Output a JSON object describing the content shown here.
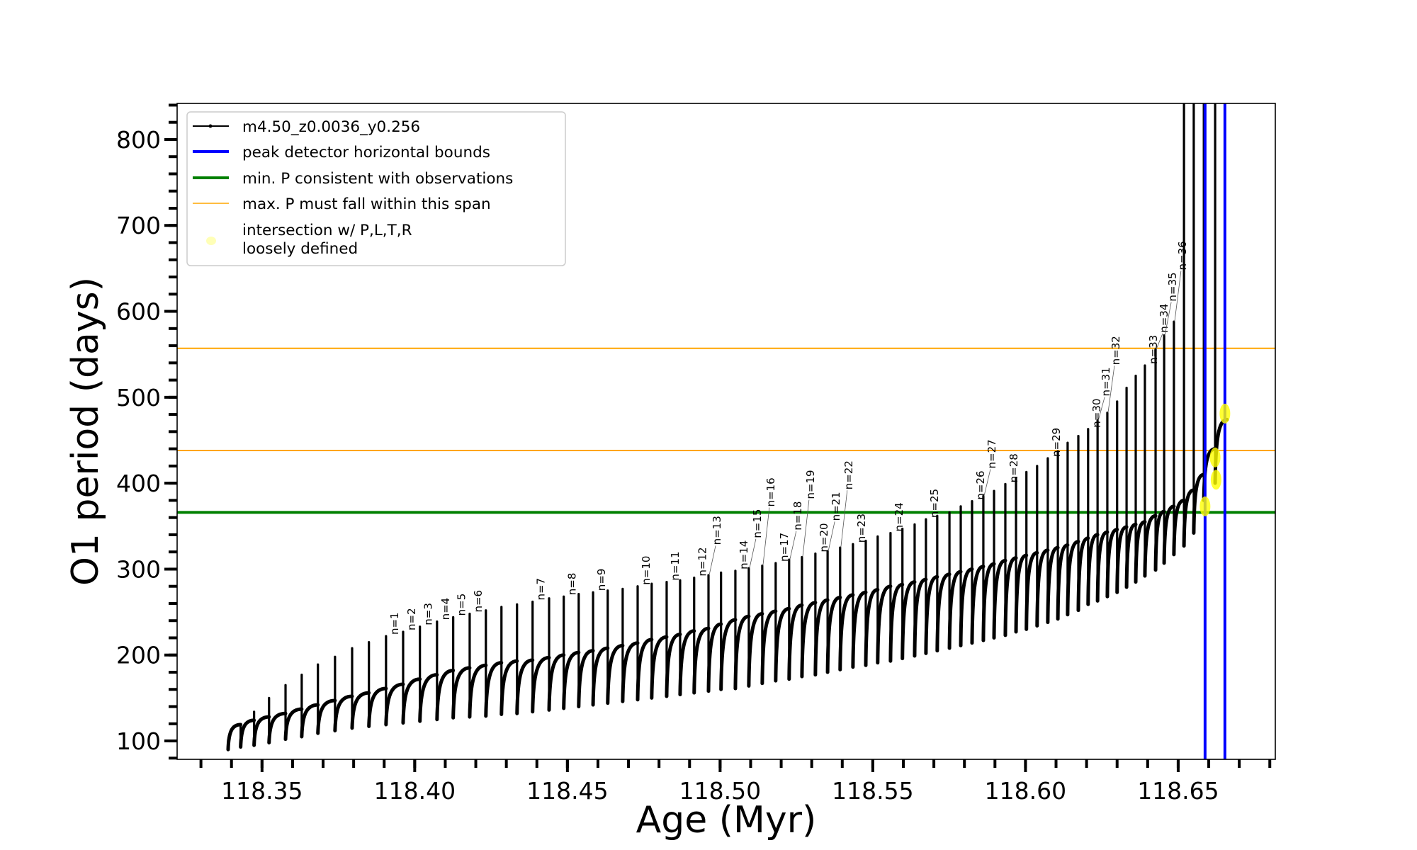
{
  "chart_data": {
    "type": "line",
    "title": "",
    "xlabel": "Age (Myr)",
    "ylabel": "O1 period (days)",
    "xlim": [
      118.3222,
      118.6818
    ],
    "ylim": [
      78.6,
      842
    ],
    "grid": false,
    "legend_position": "top-left",
    "xticks": [
      {
        "value": 118.35,
        "label": "118.35"
      },
      {
        "value": 118.4,
        "label": "118.40"
      },
      {
        "value": 118.45,
        "label": "118.45"
      },
      {
        "value": 118.5,
        "label": "118.50"
      },
      {
        "value": 118.55,
        "label": "118.55"
      },
      {
        "value": 118.6,
        "label": "118.60"
      },
      {
        "value": 118.65,
        "label": "118.65"
      }
    ],
    "xminor_step": 0.01,
    "yticks": [
      {
        "value": 100,
        "label": "100"
      },
      {
        "value": 200,
        "label": "200"
      },
      {
        "value": 300,
        "label": "300"
      },
      {
        "value": 400,
        "label": "400"
      },
      {
        "value": 500,
        "label": "500"
      },
      {
        "value": 600,
        "label": "600"
      },
      {
        "value": 700,
        "label": "700"
      },
      {
        "value": 800,
        "label": "800"
      }
    ],
    "yminor_step": 20,
    "series": [
      {
        "name": "m4.50_z0.0036_y0.256",
        "color": "#000000",
        "cycle_fields": [
          "age",
          "period_before_spike",
          "spike_peak_period",
          "spike_trough_period"
        ],
        "cycles": [
          [
            118.3389,
            101,
            101,
            90
          ],
          [
            118.343,
            119,
            119,
            93
          ],
          [
            118.3474,
            124,
            134,
            95
          ],
          [
            118.3523,
            128,
            150,
            98
          ],
          [
            118.3577,
            132,
            165,
            102
          ],
          [
            118.363,
            137,
            177,
            105
          ],
          [
            118.3683,
            142,
            189,
            109
          ],
          [
            118.3739,
            147,
            198,
            112
          ],
          [
            118.3795,
            152,
            208,
            115
          ],
          [
            118.385,
            156,
            215,
            117
          ],
          [
            118.3906,
            161,
            222,
            119
          ],
          [
            118.3962,
            166,
            227,
            121
          ],
          [
            118.4017,
            172,
            233,
            123
          ],
          [
            118.4073,
            177,
            239,
            125
          ],
          [
            118.4126,
            182,
            244,
            127
          ],
          [
            118.418,
            185,
            248,
            128
          ],
          [
            118.4233,
            188,
            252,
            129
          ],
          [
            118.4284,
            191,
            256,
            131
          ],
          [
            118.4335,
            193,
            259,
            132
          ],
          [
            118.4386,
            194,
            262,
            134
          ],
          [
            118.444,
            197,
            266,
            136
          ],
          [
            118.4488,
            200,
            268,
            138
          ],
          [
            118.4537,
            203,
            271,
            140
          ],
          [
            118.4584,
            205,
            273,
            142
          ],
          [
            118.4632,
            208,
            275,
            144
          ],
          [
            118.4681,
            211,
            277,
            146
          ],
          [
            118.473,
            214,
            280,
            148
          ],
          [
            118.4776,
            218,
            283,
            150
          ],
          [
            118.4825,
            221,
            285,
            152
          ],
          [
            118.4869,
            224,
            287,
            154
          ],
          [
            118.4915,
            228,
            290,
            156
          ],
          [
            118.4962,
            231,
            293,
            158
          ],
          [
            118.5003,
            236,
            296,
            160
          ],
          [
            118.505,
            241,
            298,
            161
          ],
          [
            118.5094,
            245,
            301,
            164
          ],
          [
            118.5138,
            248,
            304,
            167
          ],
          [
            118.5182,
            251,
            307,
            170
          ],
          [
            118.5226,
            254,
            311,
            172
          ],
          [
            118.5268,
            258,
            314,
            175
          ],
          [
            118.5312,
            261,
            318,
            177
          ],
          [
            118.5352,
            264,
            321,
            180
          ],
          [
            118.5393,
            267,
            325,
            183
          ],
          [
            118.5435,
            270,
            329,
            186
          ],
          [
            118.5477,
            273,
            333,
            188
          ],
          [
            118.5516,
            276,
            338,
            191
          ],
          [
            118.5558,
            280,
            342,
            193
          ],
          [
            118.5597,
            282,
            347,
            196
          ],
          [
            118.5637,
            285,
            352,
            199
          ],
          [
            118.5674,
            288,
            358,
            202
          ],
          [
            118.5711,
            291,
            362,
            205
          ],
          [
            118.5751,
            294,
            366,
            208
          ],
          [
            118.5788,
            297,
            373,
            211
          ],
          [
            118.5825,
            300,
            379,
            214
          ],
          [
            118.5862,
            303,
            385,
            217
          ],
          [
            118.5897,
            306,
            391,
            220
          ],
          [
            118.5934,
            310,
            399,
            223
          ],
          [
            118.5969,
            313,
            406,
            227
          ],
          [
            118.6003,
            316,
            413,
            230
          ],
          [
            118.6038,
            319,
            420,
            234
          ],
          [
            118.6073,
            322,
            429,
            238
          ],
          [
            118.6106,
            325,
            437,
            242
          ],
          [
            118.6138,
            328,
            447,
            247
          ],
          [
            118.6173,
            332,
            455,
            252
          ],
          [
            118.6205,
            336,
            463,
            259
          ],
          [
            118.6236,
            340,
            473,
            263
          ],
          [
            118.6268,
            343,
            482,
            268
          ],
          [
            118.63,
            346,
            495,
            273
          ],
          [
            118.6331,
            349,
            511,
            279
          ],
          [
            118.6361,
            352,
            525,
            285
          ],
          [
            118.6391,
            355,
            537,
            292
          ],
          [
            118.6426,
            362,
            556,
            299
          ],
          [
            118.6454,
            367,
            572,
            307
          ],
          [
            118.6486,
            373,
            588,
            317
          ],
          [
            118.6519,
            380,
            null,
            327
          ],
          [
            118.6551,
            392,
            null,
            342
          ],
          [
            118.6584,
            410,
            null,
            380
          ],
          [
            118.6621,
            440,
            null,
            400
          ]
        ],
        "end": [
          118.666,
          474
        ]
      }
    ],
    "hlines": [
      {
        "y": 557,
        "color": "#ffa500",
        "legend": "max. P must fall within this span"
      },
      {
        "y": 438,
        "color": "#ffa500",
        "legend": "max. P must fall within this span"
      },
      {
        "y": 366,
        "color": "#008000",
        "legend": "min. P consistent with observations"
      }
    ],
    "vlines": [
      {
        "x": 118.6588,
        "color": "#0000ff",
        "legend": "peak detector horizontal bounds"
      },
      {
        "x": 118.6653,
        "color": "#0000ff",
        "legend": "peak detector horizontal bounds"
      }
    ],
    "intersections": {
      "color": "#ffff00",
      "points": [
        [
          118.6588,
          373
        ],
        [
          118.6621,
          430
        ],
        [
          118.6624,
          404
        ],
        [
          118.6653,
          481
        ]
      ]
    },
    "annotations": [
      {
        "text": "n=1",
        "x": 118.3906,
        "y": 222
      },
      {
        "text": "n=2",
        "x": 118.3962,
        "y": 227
      },
      {
        "text": "n=3",
        "x": 118.4017,
        "y": 233
      },
      {
        "text": "n=4",
        "x": 118.4073,
        "y": 239
      },
      {
        "text": "n=5",
        "x": 118.4126,
        "y": 244
      },
      {
        "text": "n=6",
        "x": 118.418,
        "y": 248
      },
      {
        "text": "n=7",
        "x": 118.4386,
        "y": 262
      },
      {
        "text": "n=8",
        "x": 118.4488,
        "y": 268
      },
      {
        "text": "n=9",
        "x": 118.4584,
        "y": 273
      },
      {
        "text": "n=10",
        "x": 118.473,
        "y": 280
      },
      {
        "text": "n=11",
        "x": 118.4825,
        "y": 285
      },
      {
        "text": "n=12",
        "x": 118.4915,
        "y": 290
      },
      {
        "text": "n=13",
        "x": 118.4962,
        "y": 293
      },
      {
        "text": "n=14",
        "x": 118.505,
        "y": 298
      },
      {
        "text": "n=15",
        "x": 118.5094,
        "y": 301
      },
      {
        "text": "n=16",
        "x": 118.5138,
        "y": 304
      },
      {
        "text": "n=17",
        "x": 118.5182,
        "y": 307
      },
      {
        "text": "n=18",
        "x": 118.5226,
        "y": 311
      },
      {
        "text": "n=19",
        "x": 118.5268,
        "y": 314
      },
      {
        "text": "n=20",
        "x": 118.5312,
        "y": 318
      },
      {
        "text": "n=21",
        "x": 118.5352,
        "y": 321
      },
      {
        "text": "n=22",
        "x": 118.5393,
        "y": 325
      },
      {
        "text": "n=23",
        "x": 118.5435,
        "y": 329
      },
      {
        "text": "n=24",
        "x": 118.5558,
        "y": 342
      },
      {
        "text": "n=25",
        "x": 118.5674,
        "y": 358
      },
      {
        "text": "n=26",
        "x": 118.5825,
        "y": 379
      },
      {
        "text": "n=27",
        "x": 118.5862,
        "y": 385
      },
      {
        "text": "n=28",
        "x": 118.5934,
        "y": 399
      },
      {
        "text": "n=29",
        "x": 118.6073,
        "y": 429
      },
      {
        "text": "n=30",
        "x": 118.6205,
        "y": 463
      },
      {
        "text": "n=31",
        "x": 118.6236,
        "y": 473
      },
      {
        "text": "n=32",
        "x": 118.6268,
        "y": 482
      },
      {
        "text": "n=33",
        "x": 118.6391,
        "y": 537
      },
      {
        "text": "n=34",
        "x": 118.6426,
        "y": 556
      },
      {
        "text": "n=35",
        "x": 118.6454,
        "y": 572
      },
      {
        "text": "n=36",
        "x": 118.6486,
        "y": 588
      }
    ],
    "legend": {
      "entries": [
        {
          "label": "m4.50_z0.0036_y0.256",
          "marker": "line-dot",
          "color": "#000000"
        },
        {
          "label": "peak detector horizontal bounds",
          "marker": "line-thick",
          "color": "#0000ff"
        },
        {
          "label": "min. P consistent with observations",
          "marker": "line-thick",
          "color": "#008000"
        },
        {
          "label": "max. P must fall within this span",
          "marker": "line-thin",
          "color": "#ffa500"
        },
        {
          "label_line1": "intersection w/ P,L,T,R",
          "label_line2": "loosely defined",
          "marker": "ellipse",
          "color": "#ffff99"
        }
      ]
    }
  }
}
